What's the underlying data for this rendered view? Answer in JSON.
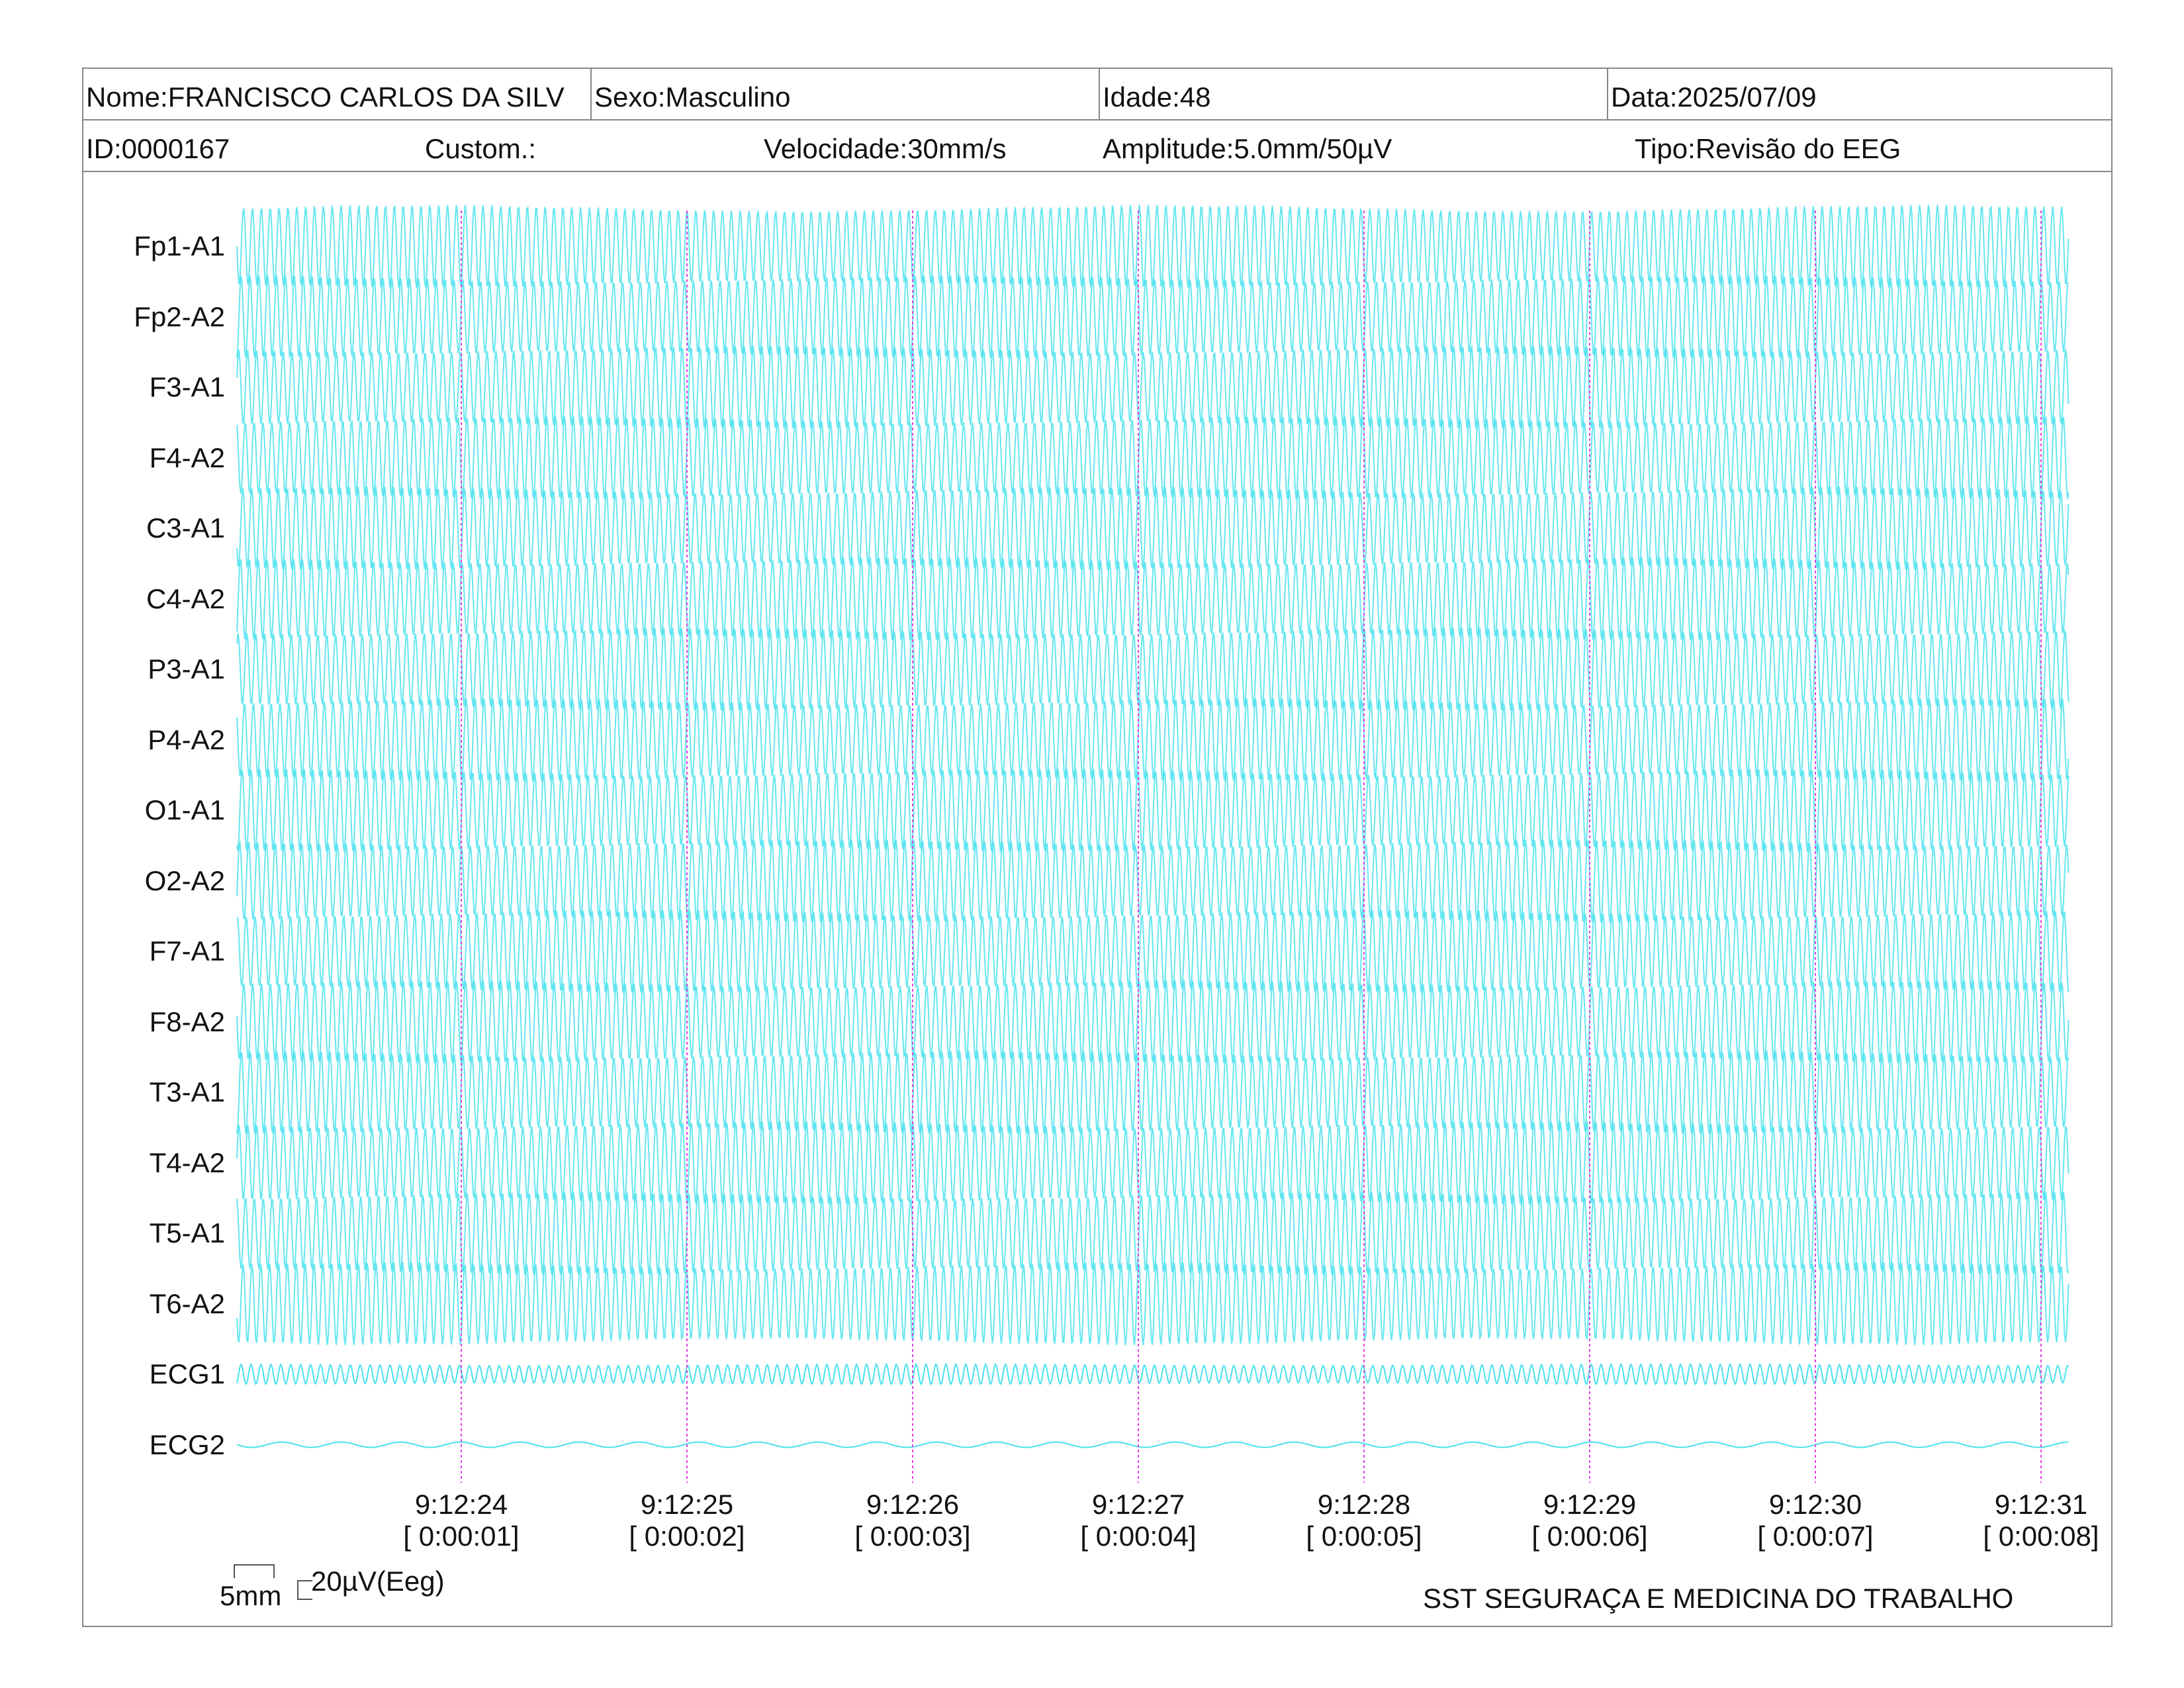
{
  "header": {
    "nome": "Nome:FRANCISCO CARLOS DA SILV",
    "sexo": "Sexo:Masculino",
    "idade": "Idade:48",
    "data": "Data:2025/07/09",
    "id": "ID:0000167",
    "custom": "Custom.:",
    "velocidade": "Velocidade:30mm/s",
    "amplitude": "Amplitude:5.0mm/50µV",
    "tipo": "Tipo:Revisão do EEG"
  },
  "channels": [
    "Fp1-A1",
    "Fp2-A2",
    "F3-A1",
    "F4-A2",
    "C3-A1",
    "C4-A2",
    "P3-A1",
    "P4-A2",
    "O1-A1",
    "O2-A2",
    "F7-A1",
    "F8-A2",
    "T3-A1",
    "T4-A2",
    "T5-A1",
    "T6-A2",
    "ECG1",
    "ECG2"
  ],
  "time_marks": [
    {
      "clock": "9:12:24",
      "elapsed": "[ 0:00:01]"
    },
    {
      "clock": "9:12:25",
      "elapsed": "[ 0:00:02]"
    },
    {
      "clock": "9:12:26",
      "elapsed": "[ 0:00:03]"
    },
    {
      "clock": "9:12:27",
      "elapsed": "[ 0:00:04]"
    },
    {
      "clock": "9:12:28",
      "elapsed": "[ 0:00:05]"
    },
    {
      "clock": "9:12:29",
      "elapsed": "[ 0:00:06]"
    },
    {
      "clock": "9:12:30",
      "elapsed": "[ 0:00:07]"
    },
    {
      "clock": "9:12:31",
      "elapsed": "[ 0:00:08]"
    }
  ],
  "calibration": {
    "time_label": "5mm",
    "amp_label": "20µV(Eeg)"
  },
  "footer": "SST SEGURAÇA E MEDICINA DO TRABALHO",
  "colors": {
    "trace": "#3ee0ec",
    "marker": "#e040e0",
    "grid": "#888888"
  }
}
